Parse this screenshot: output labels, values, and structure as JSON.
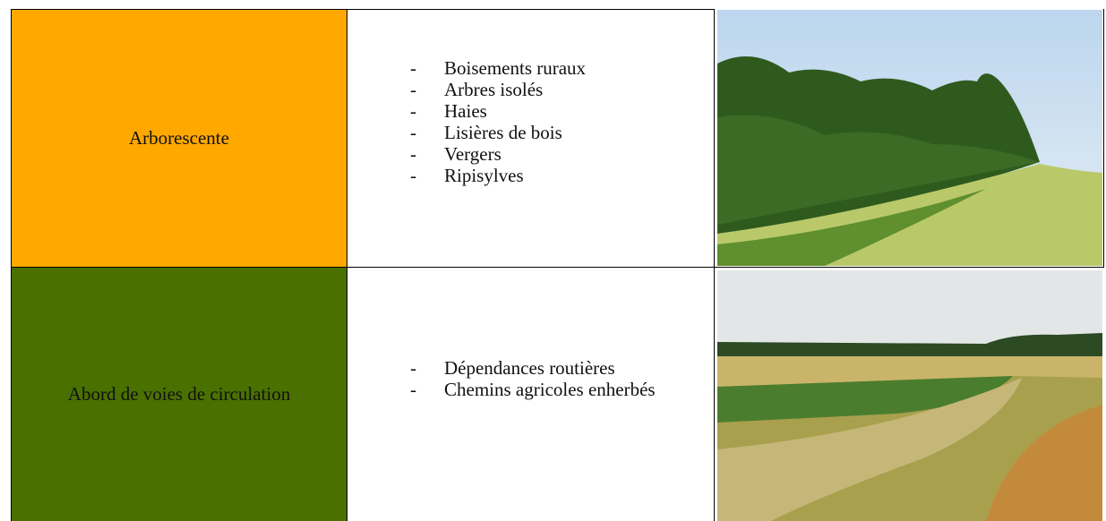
{
  "table": {
    "rows": [
      {
        "category": "Arborescente",
        "items": [
          "Boisements ruraux",
          "Arbres isolés",
          "Haies",
          "Lisières de bois",
          "Vergers",
          "Ripisylves"
        ]
      },
      {
        "category": "Abord de voies de circulation",
        "items": [
          "Dépendances routières",
          "Chemins agricoles enherbés"
        ]
      }
    ]
  }
}
